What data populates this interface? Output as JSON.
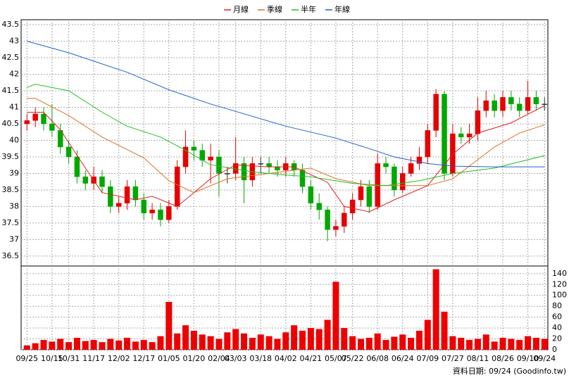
{
  "chart_data": [
    {
      "type": "candlestick",
      "legend_position": "top",
      "up_color": "#e60000",
      "down_color": "#00a800",
      "flat_color": "#333333",
      "grid": true,
      "xlim": [
        -0.7,
        62.4
      ],
      "ylim": [
        36.2,
        43.65
      ],
      "yticks": [
        36.5,
        37,
        37.5,
        38,
        38.5,
        39,
        39.5,
        40,
        40.5,
        41,
        41.5,
        42,
        42.5,
        43,
        43.5
      ],
      "open": [
        40.5,
        40.6,
        40.8,
        40.5,
        40.3,
        39.8,
        39.5,
        38.9,
        38.7,
        38.9,
        38.6,
        38.0,
        38.1,
        38.6,
        38.2,
        37.8,
        37.9,
        37.6,
        38.0,
        39.2,
        39.8,
        39.7,
        39.4,
        39.5,
        39.0,
        39.0,
        39.3,
        38.8,
        39.3,
        39.3,
        39.2,
        39.1,
        39.3,
        39.1,
        38.6,
        38.1,
        37.9,
        37.3,
        37.4,
        37.8,
        38.2,
        38.6,
        38.0,
        39.3,
        39.2,
        38.5,
        39.0,
        39.3,
        39.5,
        40.3,
        41.4,
        39.0,
        40.2,
        40.1,
        40.2,
        40.9,
        41.2,
        40.9,
        41.3,
        41.1,
        40.9,
        41.3,
        41.1
      ],
      "high": [
        40.8,
        41.0,
        41.0,
        41.1,
        40.5,
        40.0,
        39.7,
        39.1,
        39.2,
        39.1,
        38.8,
        38.3,
        38.8,
        38.8,
        38.4,
        38.1,
        38.1,
        38.2,
        39.4,
        40.3,
        40.0,
        39.9,
        39.9,
        39.7,
        39.2,
        40.1,
        39.5,
        39.5,
        39.5,
        39.5,
        39.4,
        39.5,
        39.4,
        39.3,
        38.8,
        38.4,
        38.0,
        37.6,
        38.0,
        38.4,
        38.8,
        38.8,
        39.6,
        39.5,
        39.3,
        39.2,
        39.5,
        39.8,
        40.5,
        41.55,
        41.5,
        40.5,
        40.4,
        40.5,
        41.3,
        41.5,
        41.4,
        41.5,
        41.5,
        41.3,
        41.8,
        41.5,
        41.3
      ],
      "low": [
        40.3,
        40.4,
        40.3,
        40.1,
        39.6,
        39.3,
        38.7,
        38.5,
        38.5,
        38.4,
        37.8,
        37.8,
        37.9,
        38.0,
        37.6,
        37.6,
        37.4,
        37.5,
        37.9,
        39.0,
        39.4,
        39.2,
        38.7,
        38.3,
        38.7,
        38.8,
        38.1,
        38.6,
        39.0,
        39.0,
        38.9,
        38.9,
        38.9,
        38.4,
        37.9,
        37.6,
        36.95,
        37.1,
        37.2,
        37.6,
        38.0,
        37.8,
        37.9,
        39.0,
        38.3,
        38.4,
        38.9,
        39.1,
        39.3,
        40.1,
        38.8,
        38.9,
        39.9,
        39.9,
        40.0,
        40.7,
        40.7,
        40.7,
        40.9,
        40.7,
        40.8,
        40.9,
        40.9
      ],
      "close": [
        40.6,
        40.8,
        40.5,
        40.3,
        39.8,
        39.5,
        38.9,
        38.7,
        38.9,
        38.6,
        38.0,
        38.1,
        38.6,
        38.2,
        37.8,
        37.9,
        37.6,
        38.0,
        39.2,
        39.8,
        39.7,
        39.4,
        39.5,
        39.0,
        39.0,
        39.3,
        38.8,
        39.3,
        39.3,
        39.2,
        39.1,
        39.3,
        39.1,
        38.6,
        38.1,
        37.9,
        37.3,
        37.4,
        37.8,
        38.2,
        38.6,
        38.0,
        39.3,
        39.2,
        38.5,
        39.0,
        39.3,
        39.5,
        40.3,
        41.4,
        39.0,
        40.2,
        40.1,
        40.2,
        40.9,
        41.2,
        40.9,
        41.3,
        41.1,
        40.9,
        41.3,
        41.1,
        41.1
      ],
      "lines": [
        {
          "name": "月線",
          "color": "#e02020",
          "x": [
            0,
            2,
            4,
            7,
            9,
            13,
            15,
            18,
            20,
            22,
            25,
            29,
            32,
            36,
            38,
            41,
            44,
            48,
            51,
            54,
            58,
            62
          ],
          "values": [
            40.85,
            40.85,
            40.32,
            39.16,
            38.42,
            38.2,
            38.31,
            38.0,
            38.42,
            38.84,
            39.26,
            39.2,
            39.2,
            38.73,
            38.0,
            37.84,
            38.2,
            38.63,
            39.58,
            40.22,
            40.53,
            41.05
          ]
        },
        {
          "name": "季線",
          "color": "#e07020",
          "x": [
            0,
            1,
            5,
            9,
            14,
            17,
            20,
            24,
            29,
            34,
            37,
            41,
            44,
            48,
            51,
            56,
            59,
            62
          ],
          "values": [
            41.27,
            41.27,
            40.75,
            40.1,
            39.47,
            38.78,
            38.42,
            38.84,
            39.0,
            39.16,
            38.84,
            38.63,
            38.63,
            38.63,
            38.84,
            39.8,
            40.22,
            40.47
          ]
        },
        {
          "name": "半年",
          "color": "#20c020",
          "x": [
            0,
            1,
            5,
            9,
            12,
            16,
            19,
            22,
            27,
            31,
            34,
            39,
            43,
            47,
            51,
            56,
            62
          ],
          "values": [
            41.6,
            41.7,
            41.5,
            40.85,
            40.43,
            40.1,
            39.7,
            39.26,
            39.05,
            38.95,
            38.9,
            38.7,
            38.63,
            38.78,
            39.0,
            39.16,
            39.54
          ]
        },
        {
          "name": "年線",
          "color": "#2060d0",
          "x": [
            0,
            5,
            12,
            17,
            22,
            31,
            37,
            41,
            44,
            48,
            51,
            56,
            62
          ],
          "values": [
            43.0,
            42.65,
            42.06,
            41.53,
            41.1,
            40.43,
            40.07,
            39.75,
            39.5,
            39.3,
            39.22,
            39.2,
            39.2
          ]
        }
      ]
    },
    {
      "type": "bar",
      "color": "#ee0000",
      "grid": true,
      "xlim": [
        -0.7,
        62.4
      ],
      "ylim": [
        0,
        154
      ],
      "yticks": [
        0,
        20,
        40,
        60,
        80,
        100,
        120,
        140
      ],
      "xticks": [
        {
          "value": 0,
          "label": "09/25"
        },
        {
          "value": 3,
          "label": "10/15"
        },
        {
          "value": 5,
          "label": "10/31"
        },
        {
          "value": 8,
          "label": "11/17"
        },
        {
          "value": 11,
          "label": "12/02"
        },
        {
          "value": 14,
          "label": "12/17"
        },
        {
          "value": 17,
          "label": "01/05"
        },
        {
          "value": 20,
          "label": "01/20"
        },
        {
          "value": 23,
          "label": "02/04"
        },
        {
          "value": 25,
          "label": "03/03"
        },
        {
          "value": 28,
          "label": "03/18"
        },
        {
          "value": 31,
          "label": "04/02"
        },
        {
          "value": 34,
          "label": "04/21"
        },
        {
          "value": 37,
          "label": "05/07"
        },
        {
          "value": 39,
          "label": "05/22"
        },
        {
          "value": 42,
          "label": "06/08"
        },
        {
          "value": 45,
          "label": "06/24"
        },
        {
          "value": 48,
          "label": "07/09"
        },
        {
          "value": 51,
          "label": "07/27"
        },
        {
          "value": 54,
          "label": "08/11"
        },
        {
          "value": 57,
          "label": "08/26"
        },
        {
          "value": 60,
          "label": "09/10"
        },
        {
          "value": 62,
          "label": "09/24"
        }
      ],
      "values": [
        8,
        12,
        18,
        15,
        20,
        14,
        22,
        16,
        18,
        14,
        20,
        17,
        22,
        15,
        18,
        14,
        25,
        88,
        30,
        45,
        35,
        28,
        25,
        20,
        32,
        38,
        30,
        22,
        28,
        25,
        20,
        32,
        45,
        35,
        40,
        38,
        55,
        125,
        40,
        25,
        20,
        22,
        30,
        18,
        24,
        28,
        22,
        35,
        55,
        148,
        70,
        25,
        22,
        18,
        20,
        28,
        15,
        22,
        20,
        18,
        25,
        22,
        20
      ]
    }
  ],
  "footer": "資料日期: 09/24 (Goodinfo.tw)"
}
